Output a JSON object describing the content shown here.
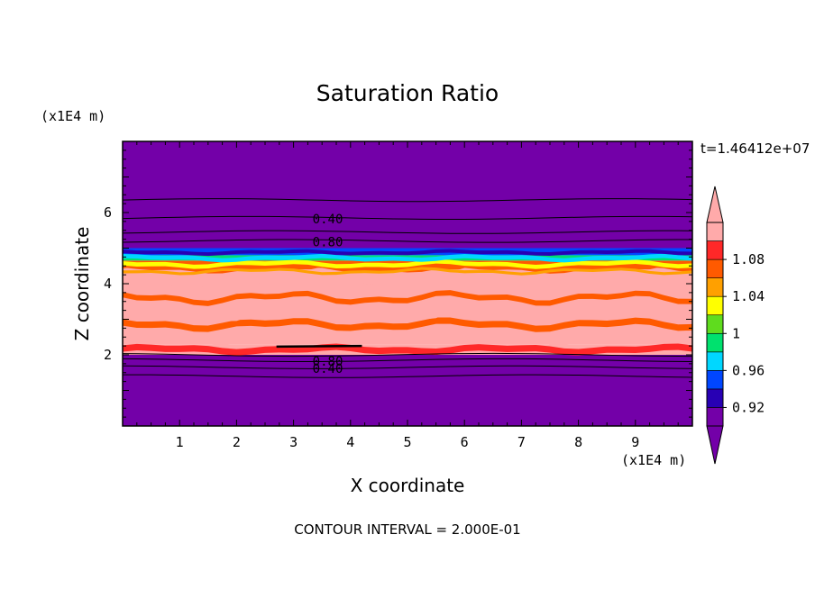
{
  "chart_data": {
    "type": "heatmap",
    "title": "Saturation Ratio",
    "xlabel": "X coordinate",
    "ylabel": "Z coordinate",
    "x_unit": "(x1E4 m)",
    "y_unit": "(x1E4 m)",
    "time_label": "t=1.46412e+07",
    "footer": "CONTOUR INTERVAL = 2.000E-01",
    "xlim": [
      0,
      10
    ],
    "ylim": [
      0,
      8
    ],
    "x_ticks": [
      "1",
      "2",
      "3",
      "4",
      "5",
      "6",
      "7",
      "8",
      "9"
    ],
    "y_ticks": [
      "2",
      "4",
      "6"
    ],
    "colorbar": {
      "levels": [
        0.9,
        0.92,
        0.94,
        0.96,
        0.98,
        1.0,
        1.02,
        1.04,
        1.06,
        1.08,
        1.1
      ],
      "colors": [
        "#7300a8",
        "#2800b4",
        "#0046ff",
        "#00d7ff",
        "#00e16e",
        "#5fdc1e",
        "#ffff00",
        "#ffa000",
        "#ff5a00",
        "#ff2828",
        "#ffaaaa"
      ],
      "tick_labels": [
        "0.92",
        "0.96",
        "1",
        "1.04",
        "1.08"
      ],
      "tick_values": [
        0.92,
        0.96,
        1.0,
        1.04,
        1.08
      ],
      "extend": "both"
    },
    "bands": [
      {
        "z0": 0.0,
        "z1": 2.0,
        "value": 0.4
      },
      {
        "z0": 2.0,
        "z1": 2.3,
        "value": 1.09
      },
      {
        "z0": 2.3,
        "z1": 4.4,
        "value": 1.09
      },
      {
        "z0": 4.4,
        "z1": 4.65,
        "value": 1.04
      },
      {
        "z0": 4.65,
        "z1": 4.8,
        "value": 0.97
      },
      {
        "z0": 4.8,
        "z1": 5.0,
        "value": 0.92
      },
      {
        "z0": 5.0,
        "z1": 8.0,
        "value": 0.6
      }
    ],
    "contours": [
      {
        "z": 6.35,
        "label": ""
      },
      {
        "z": 5.85,
        "label": "0.40"
      },
      {
        "z": 5.45,
        "label": ""
      },
      {
        "z": 5.2,
        "label": "0.80"
      },
      {
        "z": 2.0,
        "label": ""
      },
      {
        "z": 1.85,
        "label": "0.80"
      },
      {
        "z": 1.65,
        "label": "0.40"
      },
      {
        "z": 1.4,
        "label": ""
      }
    ]
  }
}
